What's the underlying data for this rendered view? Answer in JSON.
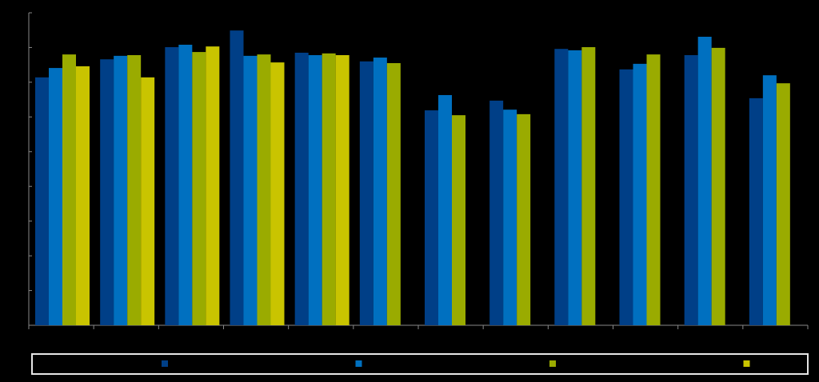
{
  "chart_data": {
    "type": "bar",
    "categories": [
      null,
      null,
      null,
      null,
      null,
      null,
      null,
      null,
      null,
      null,
      null,
      null
    ],
    "series": [
      {
        "color": "#003f87",
        "values": [
          71.4,
          76.6,
          80.1,
          84.9,
          78.5,
          76.0,
          61.9,
          64.7,
          79.6,
          73.7,
          77.8,
          65.4
        ]
      },
      {
        "color": "#0070c0",
        "values": [
          74.1,
          77.6,
          80.8,
          77.6,
          77.8,
          77.1,
          66.3,
          62.1,
          79.2,
          75.3,
          83.1,
          72.0
        ]
      },
      {
        "color": "#9aab00",
        "values": [
          78.0,
          77.8,
          78.7,
          78.0,
          78.3,
          75.5,
          60.5,
          60.8,
          80.1,
          78.0,
          79.9,
          69.7
        ]
      },
      {
        "color": "#c9c400",
        "values": [
          74.6,
          71.4,
          80.3,
          75.7,
          77.8,
          null,
          null,
          null,
          null,
          null,
          null,
          null
        ]
      }
    ],
    "ylim": [
      0,
      90
    ],
    "yticks": [
      0,
      10,
      20,
      30,
      40,
      50,
      60,
      70,
      80,
      90
    ],
    "grid": false
  }
}
